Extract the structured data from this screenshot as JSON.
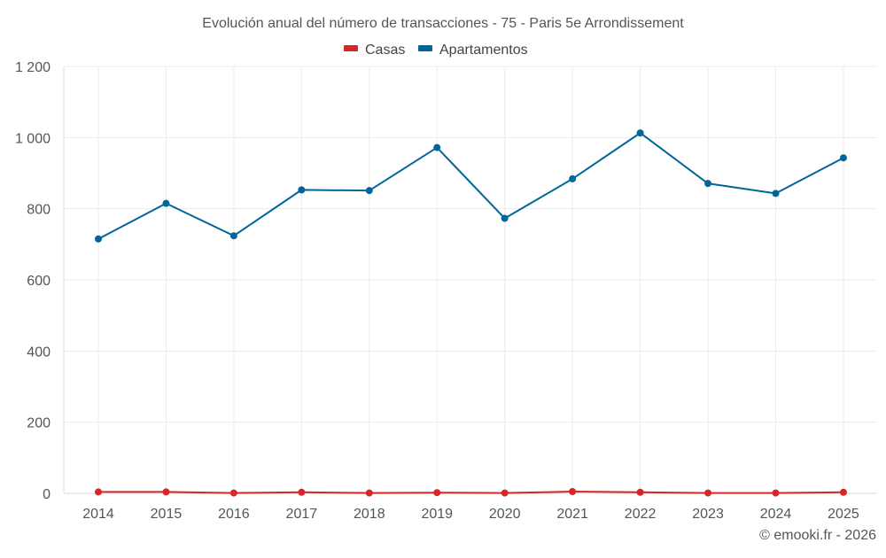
{
  "chart_data": {
    "type": "line",
    "title": "Evolución anual del número de transacciones - 75 - Paris 5e Arrondissement",
    "xlabel": "",
    "ylabel": "",
    "categories": [
      "2014",
      "2015",
      "2016",
      "2017",
      "2018",
      "2019",
      "2020",
      "2021",
      "2022",
      "2023",
      "2024",
      "2025"
    ],
    "ylim": [
      0,
      1200
    ],
    "yticks": [
      0,
      200,
      400,
      600,
      800,
      1000,
      1200
    ],
    "ytick_labels": [
      "0",
      "200",
      "400",
      "600",
      "800",
      "1 000",
      "1 200"
    ],
    "grid": true,
    "legend_position": "top-center",
    "series": [
      {
        "name": "Casas",
        "color": "#d62728",
        "values": [
          4,
          4,
          1,
          3,
          1,
          2,
          1,
          5,
          3,
          1,
          1,
          3
        ]
      },
      {
        "name": "Apartamentos",
        "color": "#006699",
        "values": [
          715,
          815,
          724,
          853,
          851,
          972,
          773,
          884,
          1013,
          871,
          843,
          943
        ]
      }
    ]
  },
  "credit": "© emooki.fr - 2026"
}
